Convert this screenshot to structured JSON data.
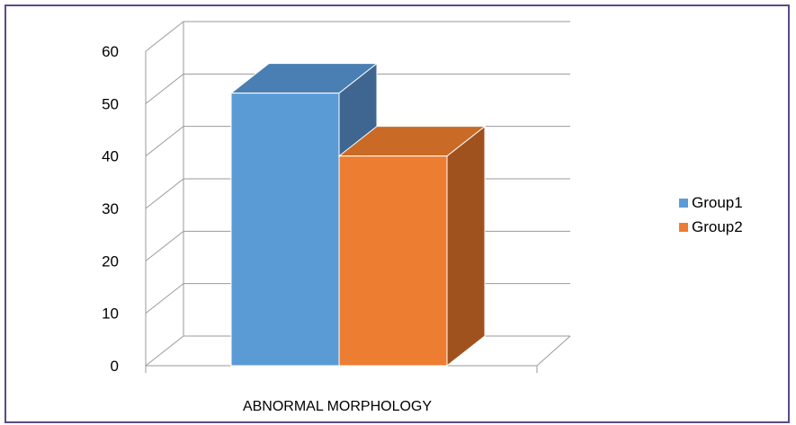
{
  "chart_data": {
    "type": "bar",
    "categories": [
      "ABNORMAL MORPHOLOGY"
    ],
    "series": [
      {
        "name": "Group1",
        "values": [
          52
        ],
        "color": "#5b9bd5",
        "top_color": "#4a7fb3",
        "side_color": "#3f6690"
      },
      {
        "name": "Group2",
        "values": [
          40
        ],
        "color": "#ed7d31",
        "top_color": "#c96a26",
        "side_color": "#a0521e"
      }
    ],
    "ylim": [
      0,
      60
    ],
    "yticks": [
      "0",
      "10",
      "20",
      "30",
      "40",
      "50",
      "60"
    ],
    "grid": true,
    "legend_position": "right",
    "title": "",
    "xlabel": "",
    "ylabel": ""
  }
}
